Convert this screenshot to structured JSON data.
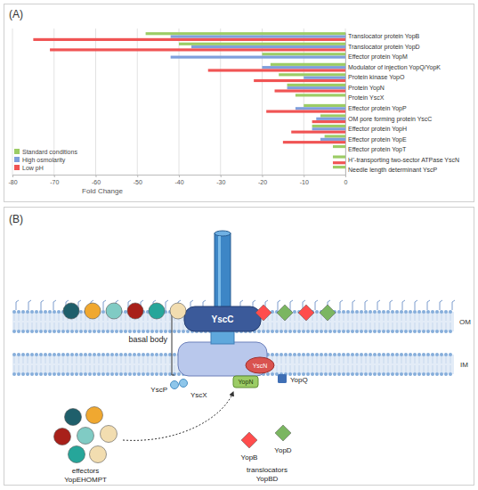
{
  "chart_data": {
    "type": "bar",
    "title": "(A)",
    "orientation": "horizontal",
    "categories": [
      "Translocator protein YopB",
      "Translocator protein YopD",
      "Effector protein YopM",
      "Modulator of injection YopQ/YopK",
      "Protein kinase YopO",
      "Protein YopN",
      "Protein YscX",
      "Effector protein YopP",
      "OM pore forming protein YscC",
      "Effector protein YopH",
      "Effector protein YopE",
      "Effector protein YopT",
      "H⁺-transporting two-sector ATPase YscN",
      "Needle length determinant YscP"
    ],
    "series": [
      {
        "name": "Standard conditions",
        "color": "#9ccc65",
        "values": [
          -48,
          -40,
          -20,
          -18,
          -16,
          -14,
          -12,
          -10,
          -6,
          -8,
          -5,
          -3,
          -3,
          -3
        ]
      },
      {
        "name": "High osmolarity",
        "color": "#7f9fdc",
        "values": [
          -42,
          -37,
          -42,
          -20,
          -10,
          -14,
          null,
          -12,
          -7,
          -8,
          -6,
          null,
          null,
          null
        ]
      },
      {
        "name": "Low pH",
        "color": "#f05454",
        "values": [
          -75,
          -71,
          null,
          -33,
          -22,
          -17,
          null,
          -19,
          -8,
          -13,
          -15,
          null,
          -3,
          null
        ]
      }
    ],
    "xlim": [
      -80,
      0
    ],
    "xticks": [
      -80,
      -70,
      -60,
      -50,
      -40,
      -30,
      -20,
      -10,
      0
    ],
    "x_label": "Fold Change",
    "grid": true,
    "legend": "bottom-left"
  },
  "diagram": {
    "label": "(B)",
    "pore": "YscC",
    "basal_body": "basal body",
    "atpase": "YscN",
    "gatekeeper": "YopN",
    "modulator": "YopQ",
    "ruler": "YscP",
    "yscx": "YscX",
    "effectors": {
      "label": "effectors",
      "names": "YopEHOMPT"
    },
    "translocators": {
      "label": "translocators",
      "names": "YopBD",
      "yopb": "YopB",
      "yopd": "YopD"
    },
    "membranes": {
      "outer": "OM",
      "inner": "IM"
    }
  }
}
